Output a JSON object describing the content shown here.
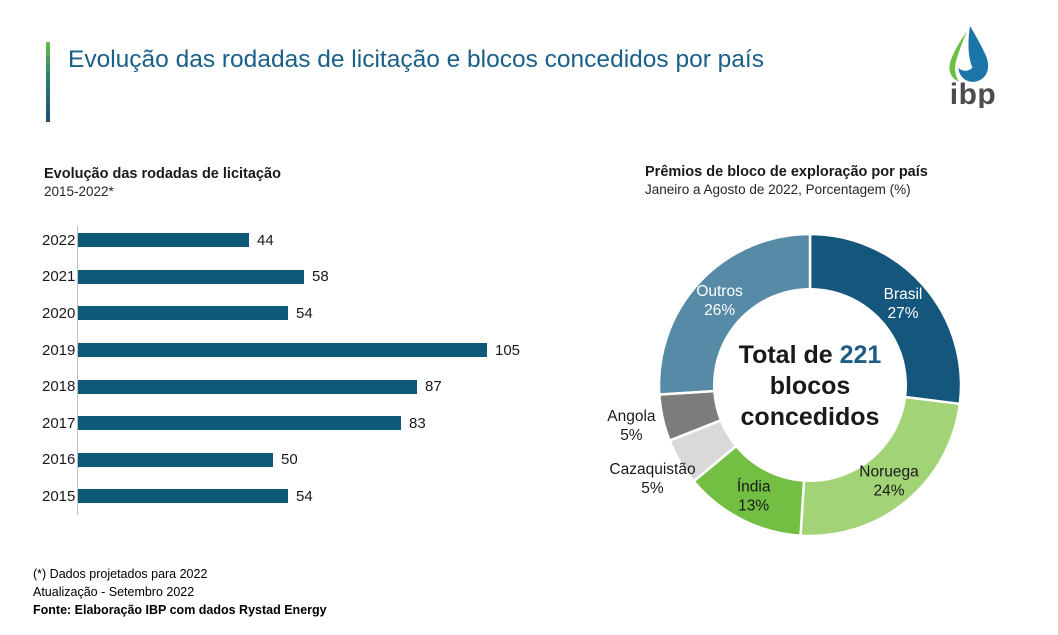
{
  "header": {
    "title": "Evolução das rodadas de licitação e blocos concedidos por país",
    "logo_text": "ibp",
    "accent_gradient": [
      "#6CBE45",
      "#1F4E79"
    ],
    "title_color": "#1A6089"
  },
  "chart_data": [
    {
      "type": "bar",
      "orientation": "horizontal",
      "title": "Evolução das rodadas de licitação",
      "subtitle": "2015-2022*",
      "categories": [
        "2022",
        "2021",
        "2020",
        "2019",
        "2018",
        "2017",
        "2016",
        "2015"
      ],
      "values": [
        44,
        58,
        54,
        105,
        87,
        83,
        50,
        54
      ],
      "bar_color": "#0F5978",
      "axis_color": "#BFBFBF",
      "data_labels": true,
      "xlim": [
        0,
        115
      ],
      "grid": false,
      "legend": false
    },
    {
      "type": "pie",
      "variant": "donut",
      "title": "Prêmios de bloco de exploração por país",
      "subtitle": "Janeiro a Agosto de 2022, Porcentagem (%)",
      "start_angle_deg": 0,
      "direction": "clockwise",
      "slices": [
        {
          "label": "Brasil",
          "value": 27,
          "color": "#15567D",
          "label_pos": "inside",
          "text_color": "#FFFFFF"
        },
        {
          "label": "Noruega",
          "value": 24,
          "color": "#A3D377",
          "label_pos": "inside",
          "text_color": "#1A1A1A"
        },
        {
          "label": "Índia",
          "value": 13,
          "color": "#72BF44",
          "label_pos": "inside",
          "text_color": "#1A1A1A"
        },
        {
          "label": "Cazaquistão",
          "value": 5,
          "color": "#D9D9D9",
          "label_pos": "outside",
          "text_color": "#1A1A1A"
        },
        {
          "label": "Angola",
          "value": 5,
          "color": "#7C7C7C",
          "label_pos": "outside",
          "text_color": "#1A1A1A"
        },
        {
          "label": "Outros",
          "value": 26,
          "color": "#568AA6",
          "label_pos": "inside",
          "text_color": "#FFFFFF"
        }
      ],
      "center_label": {
        "prefix": "Total de",
        "value": "221",
        "line2": "blocos",
        "line3": "concedidos",
        "value_color": "#1F5C83"
      }
    }
  ],
  "footer": {
    "note1": "(*) Dados projetados para 2022",
    "note2": "Atualização - Setembro 2022",
    "source": "Fonte: Elaboração IBP com dados Rystad Energy"
  }
}
